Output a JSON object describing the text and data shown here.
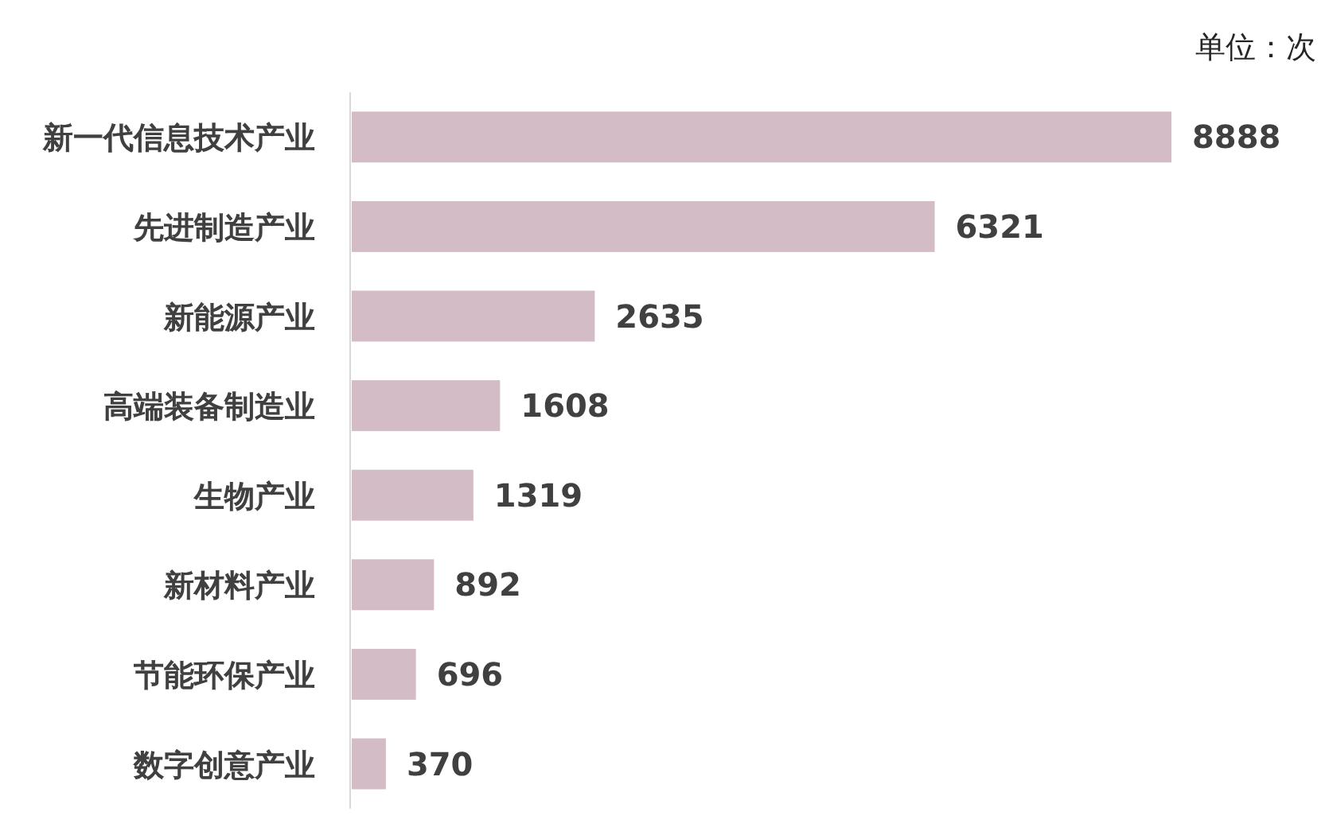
{
  "chart_data": {
    "type": "bar",
    "orientation": "horizontal",
    "categories": [
      "新一代信息技术产业",
      "先进制造产业",
      "新能源产业",
      "高端装备制造业",
      "生物产业",
      "新材料产业",
      "节能环保产业",
      "数字创意产业"
    ],
    "values": [
      8888,
      6321,
      2635,
      1608,
      1319,
      892,
      696,
      370
    ],
    "color": "#d4bcc6",
    "data_labels": true,
    "annotations": [
      "单位：次"
    ]
  }
}
